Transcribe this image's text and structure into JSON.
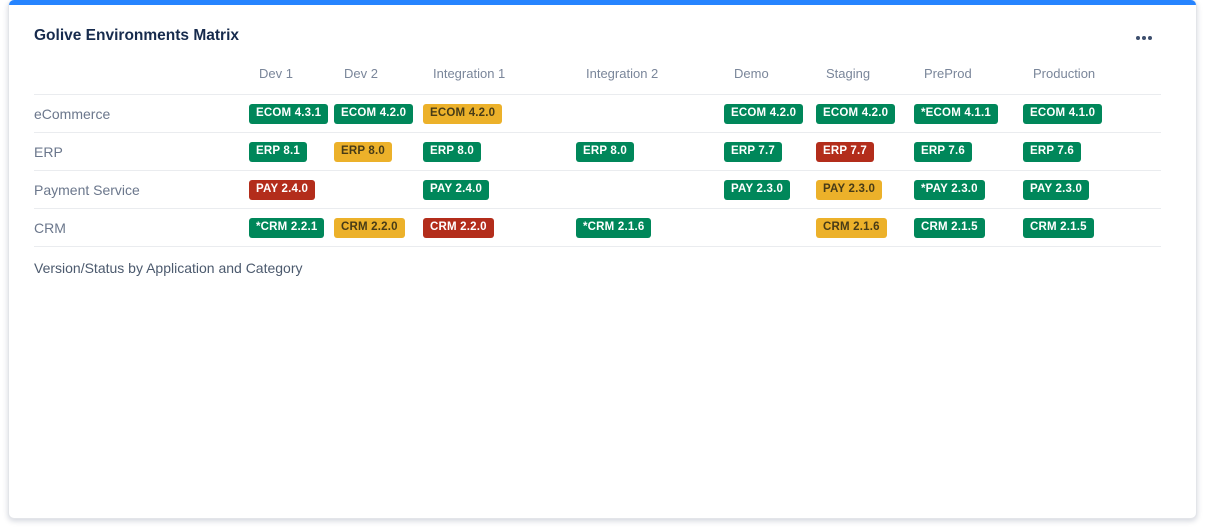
{
  "card": {
    "title": "Golive Environments Matrix",
    "footer": "Version/Status by Application and Category",
    "accent_color": "#2684FF"
  },
  "matrix": {
    "columns": [
      "Dev 1",
      "Dev 2",
      "Integration 1",
      "Integration 2",
      "Demo",
      "Staging",
      "PreProd",
      "Production"
    ],
    "rows": [
      {
        "label": "eCommerce",
        "cells": [
          {
            "text": "ECOM 4.3.1",
            "status": "green"
          },
          {
            "text": "ECOM 4.2.0",
            "status": "green"
          },
          {
            "text": "ECOM 4.2.0",
            "status": "yellow"
          },
          null,
          {
            "text": "ECOM 4.2.0",
            "status": "green"
          },
          {
            "text": "ECOM 4.2.0",
            "status": "green"
          },
          {
            "text": "*ECOM 4.1.1",
            "status": "green"
          },
          {
            "text": "ECOM 4.1.0",
            "status": "green"
          }
        ]
      },
      {
        "label": "ERP",
        "cells": [
          {
            "text": "ERP 8.1",
            "status": "green"
          },
          {
            "text": "ERP 8.0",
            "status": "yellow"
          },
          {
            "text": "ERP 8.0",
            "status": "green"
          },
          {
            "text": "ERP 8.0",
            "status": "green"
          },
          {
            "text": "ERP 7.7",
            "status": "green"
          },
          {
            "text": "ERP 7.7",
            "status": "red"
          },
          {
            "text": "ERP 7.6",
            "status": "green"
          },
          {
            "text": "ERP 7.6",
            "status": "green"
          }
        ]
      },
      {
        "label": "Payment Service",
        "cells": [
          {
            "text": "PAY 2.4.0",
            "status": "red"
          },
          null,
          {
            "text": "PAY 2.4.0",
            "status": "green"
          },
          null,
          {
            "text": "PAY 2.3.0",
            "status": "green"
          },
          {
            "text": "PAY 2.3.0",
            "status": "yellow"
          },
          {
            "text": "*PAY 2.3.0",
            "status": "green"
          },
          {
            "text": "PAY 2.3.0",
            "status": "green"
          }
        ]
      },
      {
        "label": "CRM",
        "cells": [
          {
            "text": "*CRM 2.2.1",
            "status": "green"
          },
          {
            "text": "CRM 2.2.0",
            "status": "yellow"
          },
          {
            "text": "CRM 2.2.0",
            "status": "red"
          },
          {
            "text": "*CRM 2.1.6",
            "status": "green"
          },
          null,
          {
            "text": "CRM 2.1.6",
            "status": "yellow"
          },
          {
            "text": "CRM 2.1.5",
            "status": "green"
          },
          {
            "text": "CRM 2.1.5",
            "status": "green"
          }
        ]
      }
    ]
  },
  "status_colors": {
    "green": {
      "bg": "#00875A",
      "fg": "#FFFFFF"
    },
    "yellow": {
      "bg": "#ECB12A",
      "fg": "#473B17"
    },
    "red": {
      "bg": "#B32D1B",
      "fg": "#FFFFFF"
    }
  }
}
